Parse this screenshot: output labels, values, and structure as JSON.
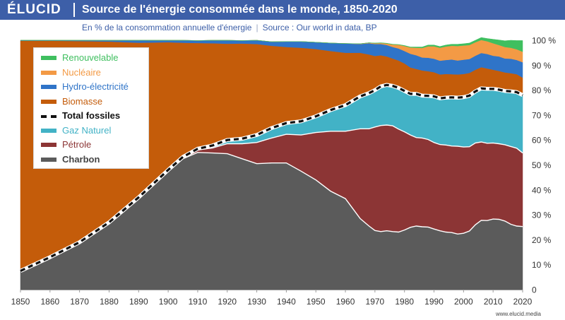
{
  "header": {
    "logo": "ÉLUCID",
    "title": "Source de l'énergie consommée dans le monde, 1850-2020"
  },
  "subtitle": {
    "left": "En % de la consommation annuelle d'énergie",
    "right": "Source : Our world in data, BP"
  },
  "credit": "www.elucid.media",
  "colors": {
    "header": "#3d5fa8",
    "Charbon": "#5b5b5b",
    "Pétrole": "#8c3535",
    "Gaz Naturel": "#42b2c6",
    "Biomasse": "#c45c0a",
    "Hydro-électricité": "#2f74c8",
    "Nucléaire": "#f39a45",
    "Renouvelable": "#3fbf5f"
  },
  "chart_data": {
    "type": "area",
    "stacked": true,
    "x": [
      1850,
      1860,
      1870,
      1880,
      1890,
      1900,
      1905,
      1910,
      1915,
      1920,
      1925,
      1930,
      1935,
      1940,
      1945,
      1950,
      1955,
      1960,
      1965,
      1968,
      1970,
      1972,
      1974,
      1976,
      1978,
      1980,
      1982,
      1984,
      1986,
      1988,
      1990,
      1992,
      1994,
      1996,
      1998,
      2000,
      2002,
      2004,
      2006,
      2008,
      2010,
      2012,
      2014,
      2016,
      2018,
      2020
    ],
    "series": [
      {
        "name": "Charbon",
        "values": [
          7.5,
          13,
          19,
          27,
          37,
          48,
          52.5,
          55,
          54.8,
          54.5,
          52.5,
          50.5,
          50.8,
          50.8,
          47.5,
          44,
          39.5,
          36.5,
          28.5,
          25.5,
          23.7,
          23.3,
          23.6,
          23.3,
          23.1,
          23.9,
          25,
          25.5,
          25.2,
          25.1,
          24.3,
          23.6,
          23.1,
          22.9,
          22.3,
          22.6,
          23.5,
          26,
          27.8,
          27.7,
          28.3,
          28.2,
          27.5,
          26.2,
          25.5,
          25.3
        ]
      },
      {
        "name": "Pétrole",
        "values": [
          0,
          0,
          0,
          0,
          0,
          0,
          0.5,
          1,
          2,
          4,
          6,
          8.5,
          10,
          11.5,
          14.5,
          19,
          24,
          27,
          36,
          39,
          41.5,
          42.5,
          42.4,
          42.4,
          41.3,
          39.4,
          37,
          35.5,
          35.6,
          35.1,
          34.7,
          34.6,
          34.9,
          34.7,
          35.2,
          34.6,
          33.8,
          32.8,
          31.4,
          31,
          30.5,
          30.3,
          30.6,
          31.2,
          31.2,
          29.5
        ]
      },
      {
        "name": "Gaz Naturel",
        "values": [
          0,
          0,
          0,
          0,
          0,
          0,
          0.2,
          0.5,
          1,
          1.5,
          2,
          3,
          4,
          4.5,
          5.5,
          6.5,
          8.5,
          10.5,
          13,
          14.3,
          14.8,
          15.7,
          16.1,
          16,
          16.5,
          16.4,
          16.5,
          17.5,
          17,
          17.5,
          18.5,
          18.5,
          19,
          19.5,
          19.5,
          20,
          20.5,
          20.7,
          21.5,
          21.8,
          21.7,
          21.7,
          21.6,
          22.1,
          22.5,
          23.2
        ]
      },
      {
        "name": "Biomasse",
        "values": [
          92.3,
          86.8,
          80.7,
          72.5,
          62,
          51.2,
          45.8,
          42.4,
          41,
          38.6,
          38.2,
          36.5,
          33,
          30.5,
          29.5,
          27,
          23.7,
          21,
          17.5,
          15.5,
          13.7,
          12.5,
          11.4,
          11,
          11,
          11,
          10.6,
          10,
          10.1,
          9.9,
          9.7,
          9.6,
          9.5,
          9.3,
          9.3,
          9.3,
          9.1,
          8.7,
          8.5,
          8.2,
          7.7,
          7.5,
          7.4,
          7.3,
          7.2,
          7
        ]
      },
      {
        "name": "Hydro-électricité",
        "values": [
          0.2,
          0.2,
          0.3,
          0.5,
          1,
          0.8,
          1,
          1,
          1.2,
          1.4,
          1.2,
          1.5,
          1.6,
          2.2,
          2.5,
          2.7,
          3.2,
          3.7,
          3.5,
          4.5,
          4.8,
          4.5,
          4.6,
          4.6,
          4.8,
          5,
          5.5,
          5.5,
          5.2,
          5.4,
          5.4,
          5.5,
          5.6,
          5.9,
          5.6,
          5.7,
          5.6,
          5.6,
          5.7,
          5.8,
          5.6,
          5.8,
          5.6,
          5.8,
          5.7,
          6.2
        ]
      },
      {
        "name": "Nucléaire",
        "values": [
          0,
          0,
          0,
          0,
          0,
          0,
          0,
          0,
          0,
          0,
          0,
          0,
          0,
          0,
          0,
          0,
          0,
          0,
          0.1,
          0.2,
          0.3,
          0.4,
          0.6,
          1,
          1.5,
          2,
          2.5,
          3,
          3.8,
          4.6,
          5,
          5.2,
          5.4,
          5.5,
          5.8,
          5.7,
          5.6,
          5.4,
          5.2,
          5.1,
          5,
          4.6,
          4.6,
          4.4,
          4.3,
          4.2
        ]
      },
      {
        "name": "Renouvelable",
        "values": [
          0,
          0,
          0,
          0,
          0,
          0,
          0,
          0,
          0,
          0,
          0,
          0,
          0,
          0,
          0,
          0,
          0,
          0,
          0,
          0,
          0.1,
          0.1,
          0.1,
          0.1,
          0.1,
          0.2,
          0.2,
          0.3,
          0.4,
          0.5,
          0.5,
          0.5,
          0.6,
          0.6,
          0.7,
          0.7,
          0.8,
          0.8,
          1,
          1.1,
          1.6,
          2,
          2.5,
          3,
          3.5,
          4.5
        ]
      }
    ],
    "total_fossiles": {
      "name": "Total fossiles",
      "values": [
        7.5,
        13,
        19,
        27,
        37,
        48,
        53.2,
        56.5,
        57.8,
        60,
        60.5,
        62,
        64.8,
        66.8,
        67.5,
        69.5,
        72,
        74,
        77.5,
        78.8,
        80,
        81.5,
        82.1,
        81.7,
        80.9,
        79.7,
        78.5,
        78.5,
        77.8,
        77.7,
        77.5,
        76.7,
        77,
        77.1,
        77,
        77.2,
        77.8,
        79.5,
        80.7,
        80.5,
        80.5,
        80.2,
        79.7,
        79.5,
        79.2,
        78
      ]
    },
    "legend": [
      "Renouvelable",
      "Nucléaire",
      "Hydro-électricité",
      "Biomasse",
      "Total fossiles",
      "Gaz Naturel",
      "Pétrole",
      "Charbon"
    ],
    "legend_placement": "top-left",
    "xlim": [
      1850,
      2020
    ],
    "ylim": [
      0,
      100
    ],
    "x_ticks": [
      "1850",
      "1860",
      "1870",
      "1880",
      "1890",
      "1900",
      "1910",
      "1920",
      "1930",
      "1940",
      "1950",
      "1960",
      "1970",
      "1980",
      "1990",
      "2000",
      "2010",
      "2020"
    ],
    "y_ticks": [
      "0",
      "10 %",
      "20 %",
      "30 %",
      "40 %",
      "50 %",
      "60 %",
      "70 %",
      "80 %",
      "90 %",
      "100 %"
    ],
    "y_axis_side": "right",
    "grid": false
  }
}
